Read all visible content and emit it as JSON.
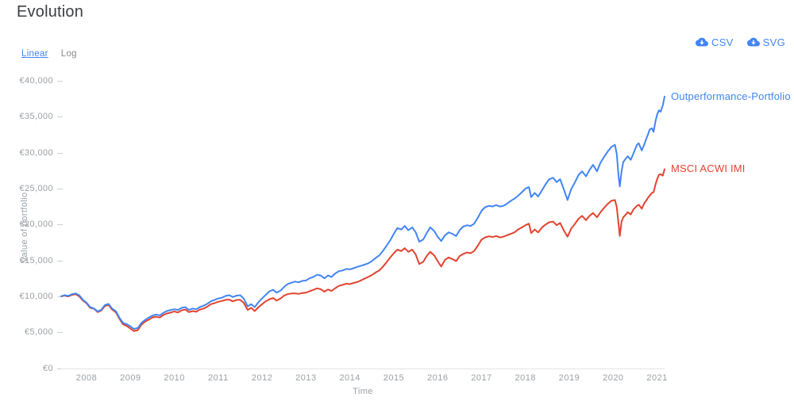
{
  "page": {
    "title": "Evolution"
  },
  "toolbar": {
    "scale_options": [
      {
        "label": "Linear",
        "active": true
      },
      {
        "label": "Log",
        "active": false
      }
    ],
    "export_buttons": [
      {
        "label": "CSV",
        "icon": "cloud-download-icon"
      },
      {
        "label": "SVG",
        "icon": "cloud-download-icon"
      }
    ]
  },
  "colors": {
    "portfolio_line": "#4285F4",
    "benchmark_line": "#E2432F",
    "accent_link": "#4285F4",
    "axis_text": "#9aa0a6",
    "baseline": "#e4e4e4"
  },
  "chart_data": {
    "type": "line",
    "title": "Evolution",
    "xlabel": "Time",
    "ylabel": "Value of portfolio",
    "currency": "EUR",
    "grid": false,
    "legend_position": "line-end-labels",
    "xlim": [
      2007.42,
      2021.17
    ],
    "ylim": [
      0,
      40000
    ],
    "x_ticks": [
      2008,
      2009,
      2010,
      2011,
      2012,
      2013,
      2014,
      2015,
      2016,
      2017,
      2018,
      2019,
      2020,
      2021
    ],
    "y_ticks": [
      {
        "value": 0,
        "label": "€0"
      },
      {
        "value": 5000,
        "label": "€5,000"
      },
      {
        "value": 10000,
        "label": "€10,000"
      },
      {
        "value": 15000,
        "label": "€15,000"
      },
      {
        "value": 20000,
        "label": "€20,000"
      },
      {
        "value": 25000,
        "label": "€25,000"
      },
      {
        "value": 30000,
        "label": "€30,000"
      },
      {
        "value": 35000,
        "label": "€35,000"
      },
      {
        "value": 40000,
        "label": "€40,000"
      }
    ],
    "x": [
      2007.42,
      2007.5,
      2007.58,
      2007.67,
      2007.75,
      2007.83,
      2007.92,
      2008.0,
      2008.08,
      2008.17,
      2008.25,
      2008.33,
      2008.42,
      2008.5,
      2008.58,
      2008.67,
      2008.75,
      2008.83,
      2008.92,
      2009.0,
      2009.08,
      2009.17,
      2009.25,
      2009.33,
      2009.42,
      2009.5,
      2009.58,
      2009.67,
      2009.75,
      2009.83,
      2009.92,
      2010.0,
      2010.08,
      2010.17,
      2010.25,
      2010.33,
      2010.42,
      2010.5,
      2010.58,
      2010.67,
      2010.75,
      2010.83,
      2010.92,
      2011.0,
      2011.08,
      2011.17,
      2011.25,
      2011.33,
      2011.42,
      2011.5,
      2011.58,
      2011.67,
      2011.75,
      2011.83,
      2011.92,
      2012.0,
      2012.08,
      2012.17,
      2012.25,
      2012.33,
      2012.42,
      2012.5,
      2012.58,
      2012.67,
      2012.75,
      2012.83,
      2012.92,
      2013.0,
      2013.08,
      2013.17,
      2013.25,
      2013.33,
      2013.42,
      2013.5,
      2013.58,
      2013.67,
      2013.75,
      2013.83,
      2013.92,
      2014.0,
      2014.08,
      2014.17,
      2014.25,
      2014.33,
      2014.42,
      2014.5,
      2014.58,
      2014.67,
      2014.75,
      2014.83,
      2014.92,
      2015.0,
      2015.08,
      2015.17,
      2015.25,
      2015.33,
      2015.42,
      2015.5,
      2015.58,
      2015.67,
      2015.75,
      2015.83,
      2015.92,
      2016.0,
      2016.08,
      2016.17,
      2016.25,
      2016.33,
      2016.42,
      2016.5,
      2016.58,
      2016.67,
      2016.75,
      2016.83,
      2016.92,
      2017.0,
      2017.08,
      2017.17,
      2017.25,
      2017.33,
      2017.42,
      2017.5,
      2017.58,
      2017.67,
      2017.75,
      2017.83,
      2017.92,
      2018.0,
      2018.08,
      2018.13,
      2018.21,
      2018.29,
      2018.38,
      2018.46,
      2018.54,
      2018.63,
      2018.71,
      2018.79,
      2018.88,
      2018.96,
      2019.04,
      2019.13,
      2019.21,
      2019.29,
      2019.38,
      2019.46,
      2019.54,
      2019.63,
      2019.71,
      2019.79,
      2019.88,
      2019.96,
      2020.04,
      2020.08,
      2020.12,
      2020.15,
      2020.19,
      2020.23,
      2020.29,
      2020.33,
      2020.4,
      2020.46,
      2020.54,
      2020.58,
      2020.65,
      2020.71,
      2020.75,
      2020.79,
      2020.83,
      2020.88,
      2020.92,
      2020.96,
      2021.0,
      2021.04,
      2021.08,
      2021.13,
      2021.17
    ],
    "series": [
      {
        "name": "Outperformance-Portfolio",
        "color": "#4285F4",
        "values": [
          10000,
          10150,
          10050,
          10300,
          10400,
          10150,
          9500,
          9100,
          8500,
          8300,
          7900,
          8100,
          8800,
          8950,
          8300,
          7900,
          7000,
          6300,
          6100,
          5800,
          5450,
          5600,
          6300,
          6700,
          7050,
          7300,
          7450,
          7350,
          7700,
          7950,
          8100,
          8200,
          8100,
          8400,
          8500,
          8100,
          8300,
          8200,
          8500,
          8700,
          8950,
          9300,
          9500,
          9700,
          9800,
          10050,
          10150,
          9900,
          10100,
          10150,
          9700,
          8600,
          8900,
          8500,
          9200,
          9700,
          10200,
          10700,
          10900,
          10500,
          10800,
          11300,
          11700,
          11900,
          12050,
          11950,
          12150,
          12200,
          12500,
          12700,
          13000,
          12900,
          12500,
          12900,
          12700,
          13200,
          13500,
          13600,
          13800,
          13750,
          13900,
          14100,
          14250,
          14400,
          14600,
          14900,
          15300,
          15700,
          16300,
          17000,
          17800,
          18700,
          19500,
          19300,
          19800,
          19200,
          19600,
          18900,
          17600,
          17900,
          18800,
          19600,
          19100,
          18300,
          17700,
          18500,
          18900,
          18700,
          18400,
          19200,
          19700,
          19900,
          19800,
          20100,
          21000,
          21900,
          22400,
          22600,
          22500,
          22700,
          22500,
          22600,
          22900,
          23300,
          23600,
          24000,
          24500,
          25000,
          25200,
          23800,
          24400,
          23900,
          24800,
          25600,
          26300,
          26500,
          25900,
          26300,
          24800,
          23400,
          24900,
          25900,
          26900,
          27400,
          26700,
          27600,
          28300,
          27400,
          28600,
          29400,
          30200,
          30800,
          31100,
          29800,
          26800,
          25300,
          27400,
          28700,
          29200,
          29500,
          29000,
          29900,
          31100,
          31300,
          30300,
          31200,
          31900,
          32500,
          33200,
          33400,
          32900,
          34300,
          35300,
          35900,
          35700,
          36600,
          37800
        ]
      },
      {
        "name": "MSCI ACWI IMI",
        "color": "#E2432F",
        "values": [
          10000,
          10100,
          9980,
          10200,
          10280,
          10000,
          9400,
          9000,
          8400,
          8250,
          7800,
          8000,
          8650,
          8800,
          8150,
          7750,
          6850,
          6100,
          5850,
          5500,
          5150,
          5300,
          6050,
          6450,
          6750,
          7050,
          7150,
          7050,
          7400,
          7600,
          7750,
          7900,
          7750,
          8050,
          8150,
          7800,
          7950,
          7850,
          8150,
          8300,
          8550,
          8900,
          9050,
          9250,
          9350,
          9500,
          9550,
          9300,
          9500,
          9500,
          9100,
          8100,
          8400,
          7950,
          8500,
          8900,
          9300,
          9600,
          9750,
          9400,
          9700,
          10100,
          10300,
          10400,
          10400,
          10350,
          10450,
          10500,
          10700,
          10900,
          11100,
          11000,
          10650,
          10950,
          10750,
          11150,
          11450,
          11600,
          11750,
          11700,
          11850,
          12000,
          12200,
          12450,
          12700,
          12950,
          13300,
          13600,
          14100,
          14700,
          15400,
          16000,
          16500,
          16300,
          16700,
          16200,
          16500,
          15800,
          14500,
          14800,
          15600,
          16200,
          15700,
          14900,
          14150,
          15100,
          15400,
          15200,
          14900,
          15600,
          15900,
          16100,
          16000,
          16300,
          17100,
          17900,
          18200,
          18350,
          18250,
          18400,
          18200,
          18300,
          18500,
          18700,
          18900,
          19300,
          19600,
          19900,
          20100,
          18800,
          19300,
          18900,
          19600,
          20000,
          20300,
          20400,
          19900,
          20200,
          19100,
          18300,
          19400,
          20100,
          20800,
          21200,
          20600,
          21200,
          21600,
          21000,
          21700,
          22300,
          22900,
          23300,
          23400,
          22400,
          20100,
          18400,
          20400,
          21000,
          21400,
          21700,
          21400,
          22100,
          22600,
          22750,
          22200,
          23000,
          23300,
          23700,
          24000,
          24400,
          24500,
          25500,
          26300,
          26900,
          27000,
          26800,
          27700
        ]
      }
    ]
  }
}
